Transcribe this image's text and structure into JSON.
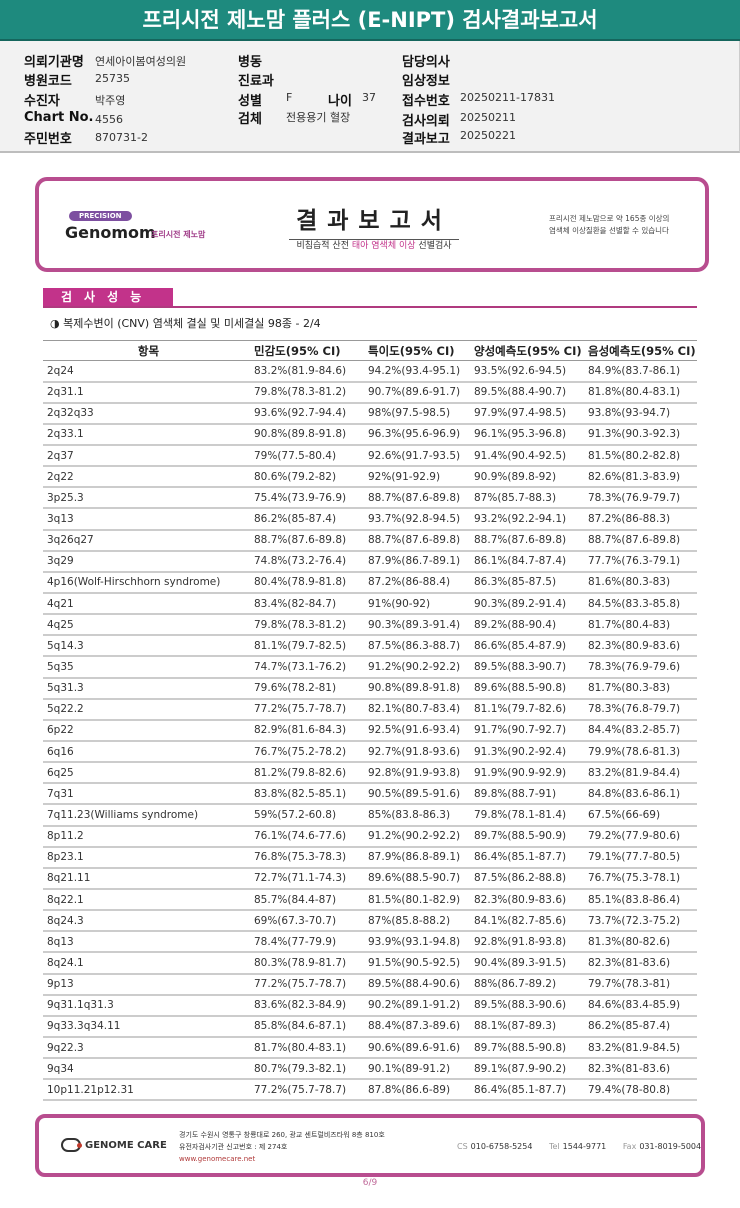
{
  "title": "프리시전 제노맘 플러스 (E-NIPT) 검사결과보고서",
  "info": {
    "institution": {
      "label": "의뢰기관명",
      "value": "연세아이봄여성의원"
    },
    "hospital_code": {
      "label": "병원코드",
      "value": "25735"
    },
    "patient": {
      "label": "수진자",
      "value": "박주영"
    },
    "chart_no": {
      "label": "Chart No.",
      "value": "4556"
    },
    "resident_no": {
      "label": "주민번호",
      "value": "870731-2"
    },
    "ward": {
      "label": "병동",
      "value": ""
    },
    "department": {
      "label": "진료과",
      "value": ""
    },
    "sex": {
      "label": "성별",
      "value": "F"
    },
    "age": {
      "label": "나이",
      "value": "37"
    },
    "specimen": {
      "label": "검체",
      "value": "전용용기 혈장"
    },
    "doctor": {
      "label": "담당의사",
      "value": ""
    },
    "clinical": {
      "label": "임상정보",
      "value": ""
    },
    "receipt_no": {
      "label": "접수번호",
      "value": "20250211-17831"
    },
    "request_date": {
      "label": "검사의뢰",
      "value": "20250211"
    },
    "report_date": {
      "label": "결과보고",
      "value": "20250221"
    }
  },
  "report_header": {
    "precision": "PRECISION",
    "brand": "Genomom",
    "brand_kr": "프리시전 제노맘",
    "title": "결과보고서",
    "subtitle_a": "비침습적 산전 ",
    "subtitle_b": "태아 염색체 이상",
    "subtitle_c": " 선별검사",
    "note_line1": "프리시전 제노맘으로 약 165종 이상의",
    "note_line2": "염색체 이상질환을 선별할 수 있습니다"
  },
  "section": {
    "tab": "검사성능",
    "subtitle": "◑ 복제수변이 (CNV) 염색체 결실 및 미세결실 98종 - 2/4"
  },
  "table": {
    "headers": [
      "항목",
      "민감도(95% CI)",
      "특이도(95% CI)",
      "양성예측도(95% CI)",
      "음성예측도(95% CI)"
    ],
    "rows": [
      [
        "2q24",
        "83.2%(81.9-84.6)",
        "94.2%(93.4-95.1)",
        "93.5%(92.6-94.5)",
        "84.9%(83.7-86.1)"
      ],
      [
        "2q31.1",
        "79.8%(78.3-81.2)",
        "90.7%(89.6-91.7)",
        "89.5%(88.4-90.7)",
        "81.8%(80.4-83.1)"
      ],
      [
        "2q32q33",
        "93.6%(92.7-94.4)",
        "98%(97.5-98.5)",
        "97.9%(97.4-98.5)",
        "93.8%(93-94.7)"
      ],
      [
        "2q33.1",
        "90.8%(89.8-91.8)",
        "96.3%(95.6-96.9)",
        "96.1%(95.3-96.8)",
        "91.3%(90.3-92.3)"
      ],
      [
        "2q37",
        "79%(77.5-80.4)",
        "92.6%(91.7-93.5)",
        "91.4%(90.4-92.5)",
        "81.5%(80.2-82.8)"
      ],
      [
        "2q22",
        "80.6%(79.2-82)",
        "92%(91-92.9)",
        "90.9%(89.8-92)",
        "82.6%(81.3-83.9)"
      ],
      [
        "3p25.3",
        "75.4%(73.9-76.9)",
        "88.7%(87.6-89.8)",
        "87%(85.7-88.3)",
        "78.3%(76.9-79.7)"
      ],
      [
        "3q13",
        "86.2%(85-87.4)",
        "93.7%(92.8-94.5)",
        "93.2%(92.2-94.1)",
        "87.2%(86-88.3)"
      ],
      [
        "3q26q27",
        "88.7%(87.6-89.8)",
        "88.7%(87.6-89.8)",
        "88.7%(87.6-89.8)",
        "88.7%(87.6-89.8)"
      ],
      [
        "3q29",
        "74.8%(73.2-76.4)",
        "87.9%(86.7-89.1)",
        "86.1%(84.7-87.4)",
        "77.7%(76.3-79.1)"
      ],
      [
        "4p16(Wolf-Hirschhorn syndrome)",
        "80.4%(78.9-81.8)",
        "87.2%(86-88.4)",
        "86.3%(85-87.5)",
        "81.6%(80.3-83)"
      ],
      [
        "4q21",
        "83.4%(82-84.7)",
        "91%(90-92)",
        "90.3%(89.2-91.4)",
        "84.5%(83.3-85.8)"
      ],
      [
        "4q25",
        "79.8%(78.3-81.2)",
        "90.3%(89.3-91.4)",
        "89.2%(88-90.4)",
        "81.7%(80.4-83)"
      ],
      [
        "5q14.3",
        "81.1%(79.7-82.5)",
        "87.5%(86.3-88.7)",
        "86.6%(85.4-87.9)",
        "82.3%(80.9-83.6)"
      ],
      [
        "5q35",
        "74.7%(73.1-76.2)",
        "91.2%(90.2-92.2)",
        "89.5%(88.3-90.7)",
        "78.3%(76.9-79.6)"
      ],
      [
        "5q31.3",
        "79.6%(78.2-81)",
        "90.8%(89.8-91.8)",
        "89.6%(88.5-90.8)",
        "81.7%(80.3-83)"
      ],
      [
        "5q22.2",
        "77.2%(75.7-78.7)",
        "82.1%(80.7-83.4)",
        "81.1%(79.7-82.6)",
        "78.3%(76.8-79.7)"
      ],
      [
        "6p22",
        "82.9%(81.6-84.3)",
        "92.5%(91.6-93.4)",
        "91.7%(90.7-92.7)",
        "84.4%(83.2-85.7)"
      ],
      [
        "6q16",
        "76.7%(75.2-78.2)",
        "92.7%(91.8-93.6)",
        "91.3%(90.2-92.4)",
        "79.9%(78.6-81.3)"
      ],
      [
        "6q25",
        "81.2%(79.8-82.6)",
        "92.8%(91.9-93.8)",
        "91.9%(90.9-92.9)",
        "83.2%(81.9-84.4)"
      ],
      [
        "7q31",
        "83.8%(82.5-85.1)",
        "90.5%(89.5-91.6)",
        "89.8%(88.7-91)",
        "84.8%(83.6-86.1)"
      ],
      [
        "7q11.23(Williams syndrome)",
        "59%(57.2-60.8)",
        "85%(83.8-86.3)",
        "79.8%(78.1-81.4)",
        "67.5%(66-69)"
      ],
      [
        "8p11.2",
        "76.1%(74.6-77.6)",
        "91.2%(90.2-92.2)",
        "89.7%(88.5-90.9)",
        "79.2%(77.9-80.6)"
      ],
      [
        "8p23.1",
        "76.8%(75.3-78.3)",
        "87.9%(86.8-89.1)",
        "86.4%(85.1-87.7)",
        "79.1%(77.7-80.5)"
      ],
      [
        "8q21.11",
        "72.7%(71.1-74.3)",
        "89.6%(88.5-90.7)",
        "87.5%(86.2-88.8)",
        "76.7%(75.3-78.1)"
      ],
      [
        "8q22.1",
        "85.7%(84.4-87)",
        "81.5%(80.1-82.9)",
        "82.3%(80.9-83.6)",
        "85.1%(83.8-86.4)"
      ],
      [
        "8q24.3",
        "69%(67.3-70.7)",
        "87%(85.8-88.2)",
        "84.1%(82.7-85.6)",
        "73.7%(72.3-75.2)"
      ],
      [
        "8q13",
        "78.4%(77-79.9)",
        "93.9%(93.1-94.8)",
        "92.8%(91.8-93.8)",
        "81.3%(80-82.6)"
      ],
      [
        "8q24.1",
        "80.3%(78.9-81.7)",
        "91.5%(90.5-92.5)",
        "90.4%(89.3-91.5)",
        "82.3%(81-83.6)"
      ],
      [
        "9p13",
        "77.2%(75.7-78.7)",
        "89.5%(88.4-90.6)",
        "88%(86.7-89.2)",
        "79.7%(78.3-81)"
      ],
      [
        "9q31.1q31.3",
        "83.6%(82.3-84.9)",
        "90.2%(89.1-91.2)",
        "89.5%(88.3-90.6)",
        "84.6%(83.4-85.9)"
      ],
      [
        "9q33.3q34.11",
        "85.8%(84.6-87.1)",
        "88.4%(87.3-89.6)",
        "88.1%(87-89.3)",
        "86.2%(85-87.4)"
      ],
      [
        "9q22.3",
        "81.7%(80.4-83.1)",
        "90.6%(89.6-91.6)",
        "89.7%(88.5-90.8)",
        "83.2%(81.9-84.5)"
      ],
      [
        "9q34",
        "80.7%(79.3-82.1)",
        "90.1%(89-91.2)",
        "89.1%(87.9-90.2)",
        "82.3%(81-83.6)"
      ],
      [
        "10p11.21p12.31",
        "77.2%(75.7-78.7)",
        "87.8%(86.6-89)",
        "86.4%(85.1-87.7)",
        "79.4%(78-80.8)"
      ]
    ]
  },
  "footer": {
    "logo": "GENOME CARE",
    "address": "경기도 수원시 영통구 창룡대로 260, 광교 센트럴비즈타워 8층 810호",
    "registration": "유전자검사기관 신고번호 : 제 274호",
    "url": "www.genomecare.net",
    "cs_label": "CS",
    "cs": "010-6758-5254",
    "tel_label": "Tel",
    "tel": "1544-9771",
    "fax_label": "Fax",
    "fax": "031-8019-5004"
  },
  "page": "6/9",
  "colors": {
    "title_bar": "#1e8a7e",
    "accent": "#c2338a",
    "border": "#b84d8f"
  }
}
